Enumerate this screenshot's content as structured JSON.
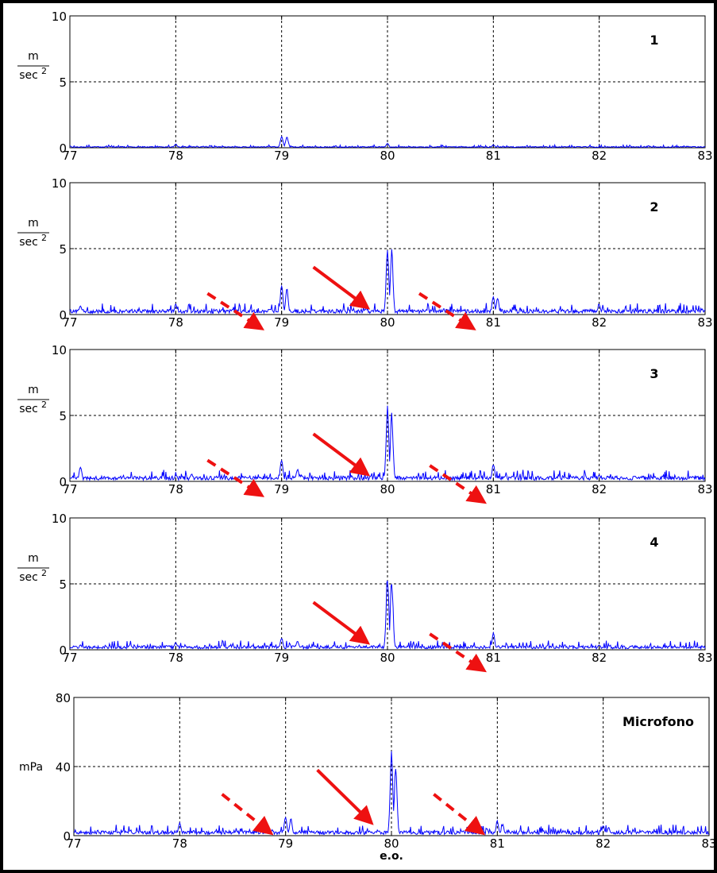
{
  "chart_data": [
    {
      "type": "line",
      "panel_label": "1",
      "ylabel_num": "m",
      "ylabel_den": "sec",
      "ylabel_exp": "2",
      "xlim": [
        77,
        83
      ],
      "ylim": [
        0,
        10
      ],
      "xticks": [
        "77",
        "78",
        "79",
        "80",
        "81",
        "82",
        "83"
      ],
      "yticks": [
        "0",
        "5",
        "10"
      ],
      "grid": true,
      "series": [
        {
          "peaks": [
            [
              77.0,
              0.15
            ],
            [
              78.0,
              0.3
            ],
            [
              79.0,
              0.95
            ],
            [
              79.05,
              0.85
            ],
            [
              80.0,
              0.35
            ],
            [
              81.0,
              0.25
            ]
          ],
          "noise": 0.06
        }
      ],
      "arrows": []
    },
    {
      "type": "line",
      "panel_label": "2",
      "ylabel_num": "m",
      "ylabel_den": "sec",
      "ylabel_exp": "2",
      "xlim": [
        77,
        83
      ],
      "ylim": [
        0,
        10
      ],
      "xticks": [
        "77",
        "78",
        "79",
        "80",
        "81",
        "82",
        "83"
      ],
      "yticks": [
        "0",
        "5",
        "10"
      ],
      "grid": true,
      "series": [
        {
          "peaks": [
            [
              77.1,
              0.7
            ],
            [
              78.0,
              0.8
            ],
            [
              79.0,
              2.3
            ],
            [
              79.05,
              2.0
            ],
            [
              80.0,
              5.2
            ],
            [
              80.04,
              5.0
            ],
            [
              81.0,
              1.5
            ],
            [
              81.04,
              1.3
            ],
            [
              82.0,
              0.8
            ]
          ],
          "noise": 0.25
        }
      ],
      "arrows": [
        {
          "x1": 78.3,
          "y1": 1.6,
          "x2": 78.8,
          "y2": -1.0,
          "style": "dashed"
        },
        {
          "x1": 79.3,
          "y1": 3.6,
          "x2": 79.8,
          "y2": 0.6,
          "style": "solid"
        },
        {
          "x1": 80.3,
          "y1": 1.6,
          "x2": 80.8,
          "y2": -1.0,
          "style": "dashed"
        }
      ]
    },
    {
      "type": "line",
      "panel_label": "3",
      "ylabel_num": "m",
      "ylabel_den": "sec",
      "ylabel_exp": "2",
      "xlim": [
        77,
        83
      ],
      "ylim": [
        0,
        10
      ],
      "xticks": [
        "77",
        "78",
        "79",
        "80",
        "81",
        "82",
        "83"
      ],
      "yticks": [
        "0",
        "5",
        "10"
      ],
      "grid": true,
      "series": [
        {
          "peaks": [
            [
              77.1,
              1.2
            ],
            [
              78.0,
              0.5
            ],
            [
              78.15,
              0.6
            ],
            [
              79.0,
              1.8
            ],
            [
              79.15,
              1.0
            ],
            [
              80.0,
              5.8
            ],
            [
              80.04,
              5.5
            ],
            [
              81.0,
              1.4
            ],
            [
              82.0,
              0.5
            ]
          ],
          "noise": 0.25
        }
      ],
      "arrows": [
        {
          "x1": 78.3,
          "y1": 1.6,
          "x2": 78.8,
          "y2": -1.0,
          "style": "dashed"
        },
        {
          "x1": 79.3,
          "y1": 3.6,
          "x2": 79.8,
          "y2": 0.6,
          "style": "solid"
        },
        {
          "x1": 80.4,
          "y1": 1.2,
          "x2": 80.9,
          "y2": -1.5,
          "style": "dashed"
        }
      ]
    },
    {
      "type": "line",
      "panel_label": "4",
      "ylabel_num": "m",
      "ylabel_den": "sec",
      "ylabel_exp": "2",
      "xlim": [
        77,
        83
      ],
      "ylim": [
        0,
        10
      ],
      "xticks": [
        "77",
        "78",
        "79",
        "80",
        "81",
        "82",
        "83"
      ],
      "yticks": [
        "0",
        "5",
        "10"
      ],
      "grid": true,
      "series": [
        {
          "peaks": [
            [
              77.1,
              0.4
            ],
            [
              78.0,
              0.6
            ],
            [
              79.0,
              1.0
            ],
            [
              79.15,
              0.7
            ],
            [
              80.0,
              5.9
            ],
            [
              80.04,
              5.7
            ],
            [
              81.0,
              1.3
            ],
            [
              82.0,
              0.4
            ]
          ],
          "noise": 0.2
        }
      ],
      "arrows": [
        {
          "x1": 79.3,
          "y1": 3.6,
          "x2": 79.8,
          "y2": 0.6,
          "style": "solid"
        },
        {
          "x1": 80.4,
          "y1": 1.2,
          "x2": 80.9,
          "y2": -1.5,
          "style": "dashed"
        }
      ]
    },
    {
      "type": "line",
      "panel_label": "Microfono",
      "ylabel_num": "mPa",
      "ylabel_den": "",
      "ylabel_exp": "",
      "xlabel": "e.o.",
      "xlim": [
        77,
        83
      ],
      "ylim": [
        0,
        80
      ],
      "xticks": [
        "77",
        "78",
        "79",
        "80",
        "81",
        "82",
        "83"
      ],
      "yticks": [
        "0",
        "40",
        "80"
      ],
      "grid": true,
      "series": [
        {
          "peaks": [
            [
              78.0,
              8
            ],
            [
              79.0,
              12
            ],
            [
              79.05,
              10
            ],
            [
              80.0,
              50
            ],
            [
              80.04,
              44
            ],
            [
              81.0,
              9
            ],
            [
              81.05,
              7
            ],
            [
              82.0,
              6
            ],
            [
              82.05,
              5
            ]
          ],
          "noise": 1.8
        }
      ],
      "arrows": [
        {
          "x1": 78.4,
          "y1": 24,
          "x2": 78.85,
          "y2": 2,
          "style": "dashed"
        },
        {
          "x1": 79.3,
          "y1": 38,
          "x2": 79.8,
          "y2": 8,
          "style": "solid"
        },
        {
          "x1": 80.4,
          "y1": 24,
          "x2": 80.85,
          "y2": 2,
          "style": "dashed"
        }
      ]
    }
  ],
  "colors": {
    "line": "#0000ff",
    "arrow": "#ee1111",
    "grid": "#000000",
    "frame": "#000000"
  }
}
